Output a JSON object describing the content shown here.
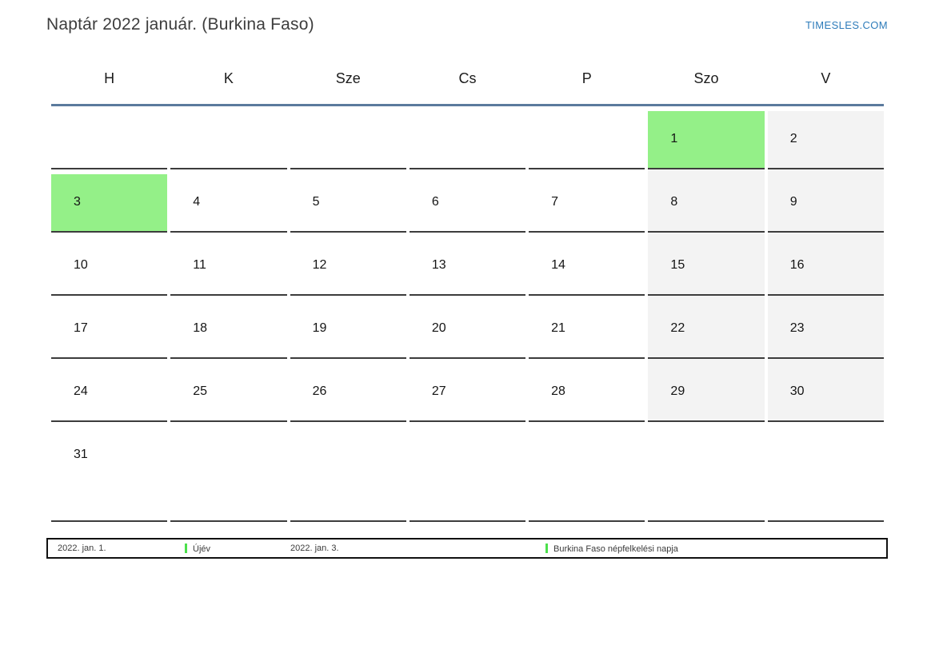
{
  "page": {
    "title": "Naptár 2022 január. (Burkina Faso)",
    "site_link": "TIMESLES.COM"
  },
  "colors": {
    "holiday_green": "#94f088",
    "weekend_gray": "#f3f3f3",
    "legend_marker_green": "#4ce04c",
    "header_rule_blue": "#5b7a9d",
    "link_blue": "#2e7cba"
  },
  "calendar": {
    "weekday_headers": [
      "H",
      "K",
      "Sze",
      "Cs",
      "P",
      "Szo",
      "V"
    ],
    "weeks": [
      [
        "",
        "",
        "",
        "",
        "",
        "1",
        "2"
      ],
      [
        "3",
        "4",
        "5",
        "6",
        "7",
        "8",
        "9"
      ],
      [
        "10",
        "11",
        "12",
        "13",
        "14",
        "15",
        "16"
      ],
      [
        "17",
        "18",
        "19",
        "20",
        "21",
        "22",
        "23"
      ],
      [
        "24",
        "25",
        "26",
        "27",
        "28",
        "29",
        "30"
      ],
      [
        "31",
        "",
        "",
        "",
        "",
        "",
        ""
      ]
    ],
    "holiday_days": [
      "1",
      "3"
    ]
  },
  "legend": {
    "entries": [
      {
        "date": "2022. jan. 1.",
        "label": "Újév"
      },
      {
        "date": "2022. jan. 3.",
        "label": "Burkina Faso népfelkelési napja"
      }
    ]
  }
}
